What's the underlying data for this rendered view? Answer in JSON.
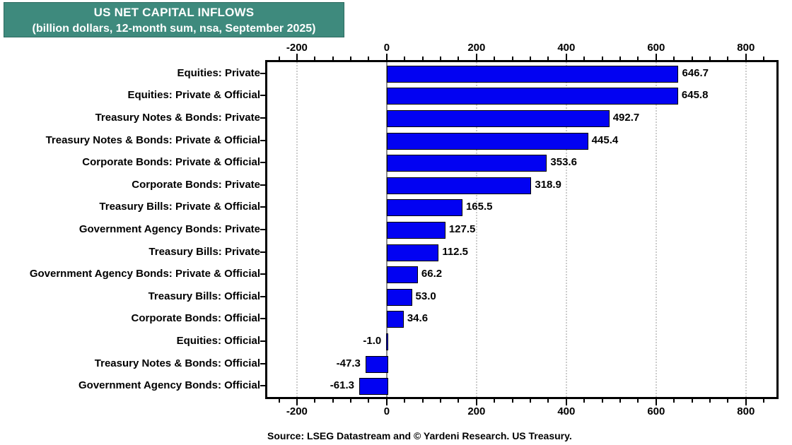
{
  "header": {
    "title": "US NET CAPITAL INFLOWS",
    "subtitle": "(billion dollars, 12-month sum, nsa, September 2025)"
  },
  "source_note": "Source: LSEG Datastream and © Yardeni Research. US Treasury.",
  "colors": {
    "header_bg": "#3E8A7D",
    "bar_fill": "#0202F2",
    "bar_border": "#000000",
    "gridline": "#cccccc",
    "zero_line": "#8c8c8c",
    "frame": "#000000"
  },
  "chart_data": {
    "type": "bar",
    "orientation": "horizontal",
    "title": "US NET CAPITAL INFLOWS",
    "subtitle": "(billion dollars, 12-month sum, nsa, September 2025)",
    "categories": [
      "Equities: Private",
      "Equities: Private & Official",
      "Treasury Notes & Bonds: Private",
      "Treasury Notes & Bonds: Private & Official",
      "Corporate Bonds: Private & Official",
      "Corporate Bonds: Private",
      "Treasury Bills: Private & Official",
      "Government Agency Bonds: Private",
      "Treasury Bills: Private",
      "Government Agency Bonds: Private & Official",
      "Treasury Bills: Official",
      "Corporate Bonds: Official",
      "Equities: Official",
      "Treasury Notes & Bonds: Official",
      "Government Agency Bonds: Official"
    ],
    "values": [
      646.7,
      645.8,
      492.7,
      445.4,
      353.6,
      318.9,
      165.5,
      127.5,
      112.5,
      66.2,
      53.0,
      34.6,
      -1.0,
      -47.3,
      -61.3
    ],
    "x_ticks": [
      -200,
      0,
      200,
      400,
      600,
      800
    ],
    "minor_tick_step": 40,
    "minor_tick_range": [
      -240,
      840
    ],
    "xlim": [
      -266,
      868
    ],
    "grid": "vertical dotted at major ticks, solid gray zero line",
    "axis_position": "top and bottom",
    "value_label_decimals": 1
  }
}
